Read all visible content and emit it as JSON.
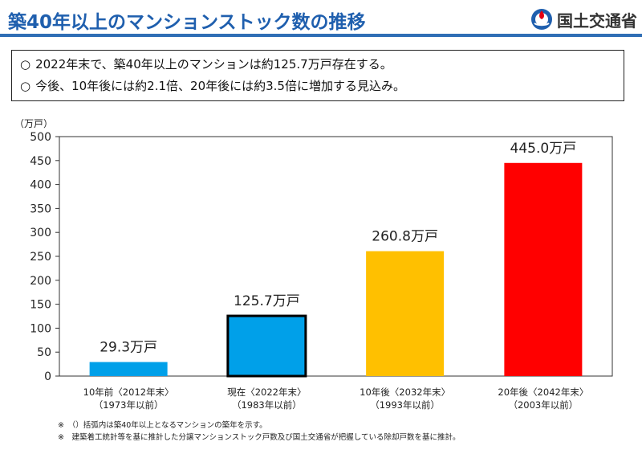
{
  "header": {
    "title": "築40年以上のマンションストック数の推移",
    "logo_text": "国土交通省"
  },
  "summary": {
    "bullet_symbol": "○",
    "lines": [
      "2022年末で、築40年以上のマンションは約125.7万戸存在する。",
      "今後、10年後には約2.1倍、20年後には約3.5倍に増加する見込み。"
    ]
  },
  "chart_data": {
    "type": "bar",
    "unit_label": "（万戸）",
    "ylim": [
      0,
      500
    ],
    "yticks": [
      0,
      50,
      100,
      150,
      200,
      250,
      300,
      350,
      400,
      450,
      500
    ],
    "grid": false,
    "categories": [
      {
        "line1": "10年前〈2012年末〉",
        "line2": "（1973年以前）"
      },
      {
        "line1": "現在〈2022年末〉",
        "line2": "（1983年以前）"
      },
      {
        "line1": "10年後〈2032年末〉",
        "line2": "（1993年以前）"
      },
      {
        "line1": "20年後〈2042年末〉",
        "line2": "（2003年以前）"
      }
    ],
    "values": [
      29.3,
      125.7,
      260.8,
      445.0
    ],
    "value_labels": [
      "29.3万戸",
      "125.7万戸",
      "260.8万戸",
      "445.0万戸"
    ],
    "colors": [
      "#00a0e9",
      "#00a0e9",
      "#ffc000",
      "#ff0000"
    ],
    "highlight_index": 1
  },
  "footnotes": [
    "※　（）括弧内は築40年以上となるマンションの築年を示す。",
    "※　建築着工統計等を基に推計した分譲マンションストック戸数及び国土交通省が把握している除却戸数を基に推計。"
  ]
}
